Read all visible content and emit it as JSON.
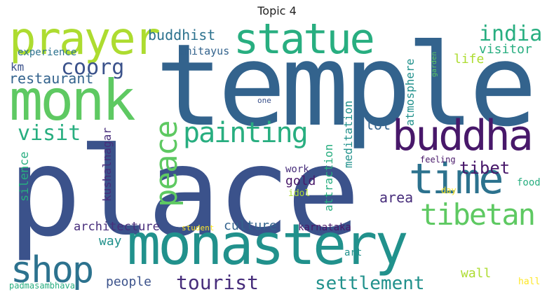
{
  "title": "Topic 4",
  "palette": {
    "dark_purple": "#48186a",
    "purple": "#472d7b",
    "indigo": "#3b528b",
    "blue": "#33638d",
    "steel": "#2c728e",
    "teal": "#21918c",
    "green_teal": "#28ae80",
    "green": "#5ec962",
    "lime": "#addc30",
    "yellow": "#fde725"
  },
  "words": {
    "place": "place",
    "temple": "temple",
    "monastery": "monastery",
    "monk": "monk",
    "prayer": "prayer",
    "statue": "statue",
    "buddha": "buddha",
    "time": "time",
    "shop": "shop",
    "painting": "painting",
    "tibetan": "tibetan",
    "peace": "peace",
    "india": "india",
    "tourist": "tourist",
    "settlement": "settlement",
    "coorg": "coorg",
    "visit": "visit",
    "tibet": "tibet",
    "buddhist": "buddhist",
    "restaurant": "restaurant",
    "experience": "experience",
    "amitayus": "amitayus",
    "km": "km",
    "kushalnagar": "kushalnagar",
    "atmosphere": "atmosphere",
    "meditation": "meditation",
    "attraction": "attraction",
    "visitor": "visitor",
    "life": "life",
    "garden": "garden",
    "one": "one",
    "lot": "lot",
    "silence": "silence",
    "gold": "gold",
    "work": "work",
    "idol": "idol",
    "feeling": "feeling",
    "area": "area",
    "day": "day",
    "food": "food",
    "architecture": "architecture",
    "culture": "culture",
    "karnataka": "karnataka",
    "student": "student",
    "way": "way",
    "art": "art",
    "wall": "wall",
    "people": "people",
    "hall": "hall",
    "padmasambhava": "padmasambhava"
  }
}
